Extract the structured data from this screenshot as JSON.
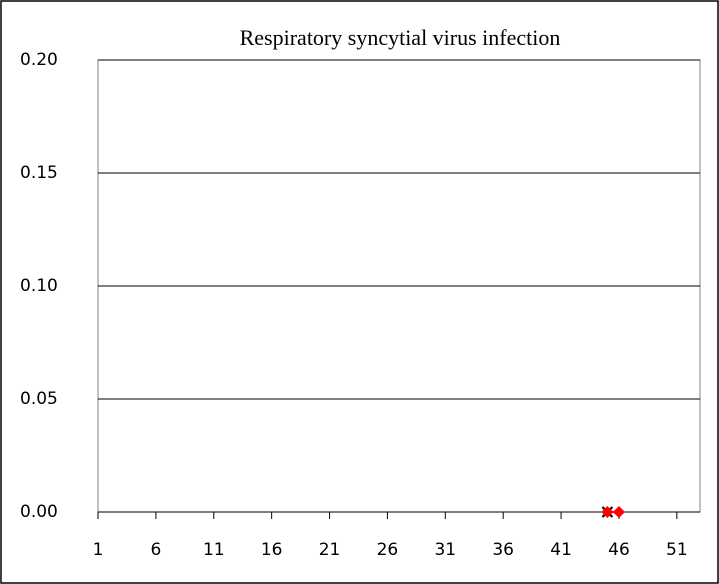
{
  "chart_data": {
    "type": "line",
    "title": "Respiratory syncytial virus infection",
    "xlim": [
      1,
      53
    ],
    "xticks": [
      1,
      6,
      11,
      16,
      21,
      26,
      31,
      36,
      41,
      46,
      51
    ],
    "ylim": [
      0,
      0.2
    ],
    "yticks": [
      {
        "value": 0,
        "label": "0.00"
      },
      {
        "value": 0.05,
        "label": "0.05"
      },
      {
        "value": 0.1,
        "label": "0.10"
      },
      {
        "value": 0.15,
        "label": "0.15"
      },
      {
        "value": 0.2,
        "label": "0.20"
      }
    ],
    "grid": true,
    "series": [
      {
        "color": "#000000",
        "marker": "x",
        "x": [
          45
        ],
        "values": [
          0
        ]
      },
      {
        "color": "#ff0000",
        "marker": "diamond",
        "x": [
          45,
          46
        ],
        "values": [
          0,
          0
        ]
      }
    ]
  }
}
